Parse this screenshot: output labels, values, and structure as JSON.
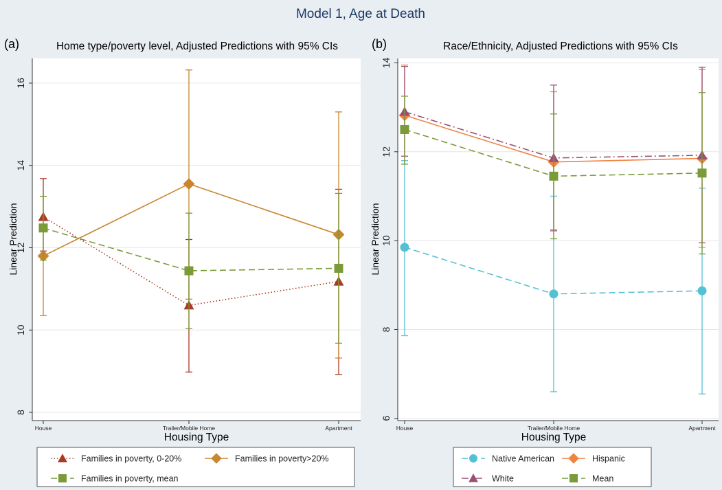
{
  "figure_title": "Model 1, Age at Death",
  "colors": {
    "background": "#e9eef3",
    "title": "#1c3a64",
    "grid": "#e6e6e6",
    "poverty_low": "#a83a22",
    "poverty_high": "#c8862e",
    "mean": "#7b9a3a",
    "native_american": "#54c0d4",
    "hispanic": "#ee8444",
    "white": "#9a5074"
  },
  "panels": [
    {
      "panel_label": "(a)",
      "title": "Home type/poverty level, Adjusted Predictions with 95% CIs"
    },
    {
      "panel_label": "(b)",
      "title": "Race/Ethnicity, Adjusted Predictions with 95% CIs"
    }
  ],
  "chart_data": [
    {
      "type": "line",
      "title": "Home type/poverty level, Adjusted Predictions with 95% CIs",
      "xlabel": "Housing Type",
      "ylabel": "Linear Prediction",
      "categories": [
        "House",
        "Trailer/Mobile Home",
        "Apartment"
      ],
      "ylim": [
        7.8,
        16.6
      ],
      "yticks": [
        "8",
        "10",
        "12",
        "14",
        "16"
      ],
      "grid": true,
      "legend_position": "bottom",
      "series": [
        {
          "name": "Families in poverty, 0-20%",
          "marker": "triangle",
          "line": "dotted",
          "color_key": "poverty_low",
          "values": [
            12.75,
            10.6,
            11.18
          ],
          "ci_low": [
            11.92,
            8.98,
            8.92
          ],
          "ci_high": [
            13.68,
            12.2,
            13.42
          ]
        },
        {
          "name": "Families in poverty>20%",
          "marker": "diamond",
          "line": "solid",
          "color_key": "poverty_high",
          "values": [
            11.8,
            13.55,
            12.32
          ],
          "ci_low": [
            10.35,
            10.75,
            9.32
          ],
          "ci_high": [
            13.25,
            16.32,
            15.3
          ]
        },
        {
          "name": "Families in poverty, mean",
          "marker": "square",
          "line": "dashed",
          "color_key": "mean",
          "values": [
            12.48,
            11.44,
            11.5
          ],
          "ci_low": [
            11.7,
            10.04,
            9.68
          ],
          "ci_high": [
            13.25,
            12.84,
            13.32
          ]
        }
      ]
    },
    {
      "type": "line",
      "title": "Race/Ethnicity, Adjusted Predictions with 95% CIs",
      "xlabel": "Housing Type",
      "ylabel": "Linear Prediction",
      "categories": [
        "House",
        "Trailer/Mobile Home",
        "Apartment"
      ],
      "ylim": [
        5.95,
        14.1
      ],
      "yticks": [
        "6",
        "8",
        "10",
        "12",
        "14"
      ],
      "grid": true,
      "legend_position": "bottom",
      "series": [
        {
          "name": "Native American",
          "marker": "circle",
          "line": "dashed",
          "color_key": "native_american",
          "values": [
            9.85,
            8.8,
            8.87
          ],
          "ci_low": [
            7.86,
            6.6,
            6.55
          ],
          "ci_high": [
            11.8,
            11.0,
            11.18
          ]
        },
        {
          "name": "Hispanic",
          "marker": "diamond",
          "line": "solid",
          "color_key": "hispanic",
          "values": [
            12.82,
            11.77,
            11.85
          ],
          "ci_low": [
            11.72,
            10.25,
            9.85
          ],
          "ci_high": [
            13.95,
            13.35,
            13.85
          ]
        },
        {
          "name": "White",
          "marker": "triangle",
          "line": "dashdot",
          "color_key": "white",
          "values": [
            12.9,
            11.86,
            11.92
          ],
          "ci_low": [
            11.9,
            10.22,
            9.95
          ],
          "ci_high": [
            13.92,
            13.5,
            13.9
          ]
        },
        {
          "name": "Mean",
          "marker": "square",
          "line": "dashed",
          "color_key": "mean",
          "values": [
            12.5,
            11.45,
            11.52
          ],
          "ci_low": [
            11.72,
            10.04,
            9.7
          ],
          "ci_high": [
            13.25,
            12.85,
            13.33
          ]
        }
      ]
    }
  ]
}
